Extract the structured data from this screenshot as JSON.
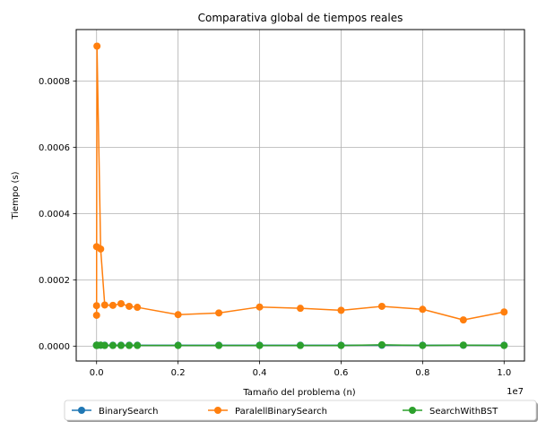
{
  "chart_data": {
    "type": "line",
    "title": "Comparativa global de tiempos reales",
    "xlabel": "Tamaño del problema (n)",
    "ylabel": "Tiempo (s)",
    "x_offset_label": "1e7",
    "x_tick_labels": [
      "0.0",
      "0.2",
      "0.4",
      "0.6",
      "0.8",
      "1.0"
    ],
    "y_tick_labels": [
      "0.0000",
      "0.0002",
      "0.0004",
      "0.0006",
      "0.0008"
    ],
    "xlim": [
      -500000,
      10500000
    ],
    "ylim": [
      -4.5e-05,
      0.000955
    ],
    "grid": true,
    "legend_position": "below-center",
    "x": [
      10,
      100,
      1000,
      10000,
      100000,
      200000,
      400000,
      600000,
      800000,
      1000000,
      2000000,
      3000000,
      4000000,
      5000000,
      6000000,
      7000000,
      8000000,
      9000000,
      10000000
    ],
    "series": [
      {
        "name": "BinarySearch",
        "color": "#1f77b4",
        "values": [
          2.5e-06,
          2.5e-06,
          2.5e-06,
          2.5e-06,
          2.5e-06,
          2.5e-06,
          2.5e-06,
          2.5e-06,
          2.5e-06,
          2.5e-06,
          2.5e-06,
          2.5e-06,
          2.5e-06,
          2.5e-06,
          2.5e-06,
          2.5e-06,
          2.5e-06,
          2.5e-06,
          2.5e-06
        ]
      },
      {
        "name": "ParalellBinarySearch",
        "color": "#ff7f0e",
        "values": [
          0.000122,
          9.3e-05,
          0.0003,
          0.000905,
          0.000293,
          0.000124,
          0.000123,
          0.000128,
          0.00012,
          0.000117,
          9.5e-05,
          0.0001,
          0.000118,
          0.000114,
          0.000108,
          0.00012,
          0.000111,
          7.9e-05,
          0.000103
        ]
      },
      {
        "name": "SearchWithBST",
        "color": "#2ca02c",
        "values": [
          2e-06,
          2e-06,
          3e-06,
          2e-06,
          3e-06,
          2e-06,
          2e-06,
          2e-06,
          2e-06,
          2e-06,
          2e-06,
          2e-06,
          2e-06,
          2e-06,
          2e-06,
          4e-06,
          2e-06,
          3e-06,
          2e-06
        ]
      }
    ]
  }
}
